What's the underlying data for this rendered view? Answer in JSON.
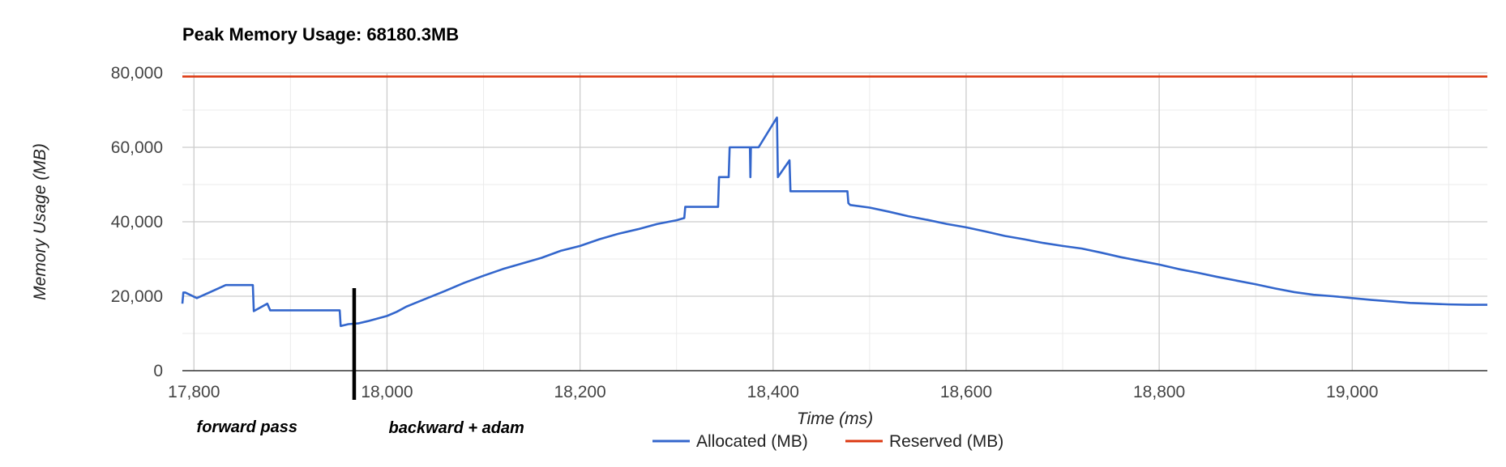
{
  "chart_data": {
    "type": "line",
    "title": "Peak Memory Usage: 68180.3MB",
    "xlabel": "Time (ms)",
    "ylabel": "Memory Usage (MB)",
    "xlim": [
      17788,
      19140
    ],
    "ylim": [
      0,
      80000
    ],
    "x_ticks": [
      17800,
      18000,
      18200,
      18400,
      18600,
      18800,
      19000
    ],
    "x_tick_labels": [
      "17,800",
      "18,000",
      "18,200",
      "18,400",
      "18,600",
      "18,800",
      "19,000"
    ],
    "y_ticks": [
      0,
      20000,
      40000,
      60000,
      80000
    ],
    "y_tick_labels": [
      "0",
      "20,000",
      "40,000",
      "60,000",
      "80,000"
    ],
    "grid": true,
    "legend_position": "bottom",
    "series": [
      {
        "name": "Allocated (MB)",
        "color": "#3366cc",
        "x": [
          17788,
          17789,
          17791,
          17803,
          17833,
          17861,
          17862,
          17876,
          17879,
          17951,
          17952,
          17960,
          17970,
          17980,
          17990,
          18000,
          18010,
          18020,
          18040,
          18060,
          18080,
          18100,
          18120,
          18140,
          18160,
          18180,
          18200,
          18220,
          18240,
          18260,
          18280,
          18300,
          18308,
          18309,
          18343,
          18344,
          18354,
          18355,
          18376,
          18376.5,
          18377,
          18385,
          18404,
          18405,
          18417,
          18418,
          18477,
          18478,
          18480,
          18500,
          18520,
          18540,
          18560,
          18580,
          18600,
          18620,
          18640,
          18660,
          18680,
          18700,
          18720,
          18740,
          18760,
          18780,
          18800,
          18820,
          18840,
          18860,
          18880,
          18900,
          18920,
          18940,
          18960,
          18980,
          19000,
          19020,
          19040,
          19060,
          19080,
          19100,
          19120,
          19140
        ],
        "y": [
          18000,
          21000,
          21000,
          19500,
          23000,
          23000,
          16000,
          18000,
          16200,
          16200,
          12000,
          12500,
          12700,
          13300,
          14000,
          14700,
          15800,
          17200,
          19300,
          21400,
          23600,
          25500,
          27300,
          28800,
          30300,
          32200,
          33500,
          35300,
          36800,
          38000,
          39400,
          40400,
          41000,
          44000,
          44000,
          52000,
          52000,
          60000,
          60000,
          52000,
          60000,
          60000,
          68000,
          52000,
          56500,
          48200,
          48200,
          45000,
          44500,
          43800,
          42700,
          41500,
          40500,
          39400,
          38500,
          37400,
          36200,
          35300,
          34300,
          33500,
          32800,
          31700,
          30500,
          29500,
          28500,
          27300,
          26300,
          25200,
          24200,
          23200,
          22100,
          21100,
          20400,
          20000,
          19500,
          19000,
          18600,
          18200,
          18000,
          17800,
          17700,
          17700
        ]
      },
      {
        "name": "Reserved (MB)",
        "color": "#dc3912",
        "x": [
          17788,
          19140
        ],
        "y": [
          79000,
          79000
        ]
      }
    ],
    "annotations": [
      {
        "text": "forward pass",
        "x": 17855
      },
      {
        "text": "backward + adam",
        "x": 18072
      }
    ],
    "marker_line": {
      "x": 17966,
      "color": "#000000"
    }
  }
}
